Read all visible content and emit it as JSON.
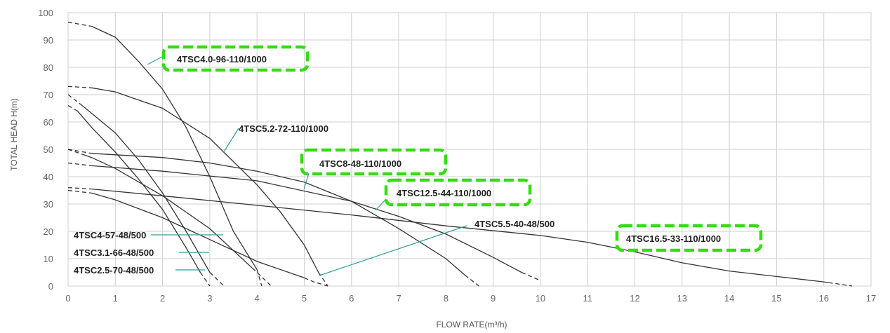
{
  "chart_data": {
    "type": "line",
    "title": "",
    "xlabel": "FLOW RATE(m³/h)",
    "ylabel": "TOTAL HEAD H(m)",
    "xlim": [
      0,
      17
    ],
    "ylim": [
      0,
      100
    ],
    "x_ticks": [
      "0",
      "1",
      "2",
      "3",
      "4",
      "5",
      "6",
      "7",
      "8",
      "9",
      "10",
      "11",
      "12",
      "13",
      "14",
      "15",
      "16",
      "17"
    ],
    "y_ticks": [
      "0",
      "10",
      "20",
      "30",
      "40",
      "50",
      "60",
      "70",
      "80",
      "90",
      "100"
    ],
    "grid": true,
    "series": [
      {
        "name": "4TSC4.0-96-110/1000",
        "highlighted": true,
        "x": [
          0,
          0.5,
          1,
          1.5,
          2,
          2.5,
          3,
          3.5,
          4,
          4.1
        ],
        "y": [
          96.5,
          95,
          91,
          82,
          72,
          58,
          40,
          20,
          6,
          0
        ],
        "dashed_segments": [
          [
            0,
            0.5
          ],
          [
            4,
            4.1
          ]
        ]
      },
      {
        "name": "4TSC5.2-72-110/1000",
        "highlighted": false,
        "x": [
          0,
          0.5,
          1,
          2,
          3,
          4,
          4.5,
          5,
          5.3,
          5.5
        ],
        "y": [
          73,
          72.5,
          71,
          65,
          54,
          37,
          27,
          15,
          5,
          0
        ],
        "dashed_segments": [
          [
            0,
            0.5
          ],
          [
            5.3,
            5.5
          ]
        ]
      },
      {
        "name": "4TSC8-48-110/1000",
        "highlighted": true,
        "x": [
          0,
          0.5,
          1,
          2,
          3,
          4,
          5,
          6,
          7,
          8,
          8.4,
          8.7
        ],
        "y": [
          50,
          48.5,
          48,
          47,
          45,
          42,
          38,
          31,
          21,
          10,
          4,
          0
        ],
        "dashed_segments": [
          [
            0,
            0.5
          ],
          [
            8.4,
            8.7
          ]
        ]
      },
      {
        "name": "4TSC12.5-44-110/1000",
        "highlighted": true,
        "x": [
          0,
          0.5,
          2,
          4,
          6,
          7,
          8,
          9,
          9.6,
          10
        ],
        "y": [
          45,
          44,
          42,
          38.5,
          31,
          25.5,
          19,
          10.5,
          5,
          2
        ],
        "dashed_segments": [
          [
            0,
            0.5
          ],
          [
            9.6,
            10
          ]
        ]
      },
      {
        "name": "4TSC16.5-33-110/1000",
        "highlighted": true,
        "x": [
          0,
          0.5,
          2,
          4,
          6,
          8,
          10,
          11,
          12,
          13,
          14,
          15,
          16,
          16.6
        ],
        "y": [
          36,
          35.5,
          33,
          29.5,
          26,
          22,
          18.5,
          16,
          12.5,
          8.5,
          5.5,
          3.5,
          1.5,
          0
        ],
        "dashed_segments": [
          [
            0,
            0.5
          ],
          [
            16.1,
            16.6
          ]
        ]
      },
      {
        "name": "4TSC5.5-40-48/500",
        "highlighted": false,
        "x": [
          0,
          0.5,
          1,
          2,
          3,
          4,
          5,
          5.2,
          5.5
        ],
        "y": [
          35,
          34,
          31.5,
          25,
          17,
          9,
          3,
          1.5,
          0
        ],
        "dashed_segments": [
          [
            0,
            0.5
          ],
          [
            5,
            5.5
          ]
        ]
      },
      {
        "name": "4TSC4-57-48/500",
        "highlighted": false,
        "x": [
          0,
          0.5,
          1,
          2,
          3,
          4,
          4.3
        ],
        "y": [
          50,
          47,
          43,
          33,
          21,
          5,
          0
        ],
        "dashed_segments": [
          [
            0,
            0.3
          ],
          [
            3.9,
            4.3
          ]
        ]
      },
      {
        "name": "4TSC3.1-66-48/500",
        "highlighted": false,
        "x": [
          0,
          0.3,
          1,
          1.5,
          2,
          2.5,
          3,
          3.3
        ],
        "y": [
          70,
          66,
          56,
          46,
          34,
          20,
          5,
          0
        ],
        "dashed_segments": [
          [
            0,
            0.3
          ],
          [
            3.0,
            3.3
          ]
        ]
      },
      {
        "name": "4TSC2.5-70-48/500",
        "highlighted": false,
        "x": [
          0,
          0.2,
          0.5,
          1,
          1.5,
          2,
          2.5,
          2.8,
          3.0
        ],
        "y": [
          66,
          64,
          58,
          49,
          39,
          28,
          14,
          5,
          0
        ],
        "dashed_segments": [
          [
            0,
            0.2
          ],
          [
            2.8,
            3.0
          ]
        ]
      }
    ],
    "annotations": [
      {
        "text": "4TSC4.0-96-110/1000",
        "highlighted": true
      },
      {
        "text": "4TSC5.2-72-110/1000",
        "highlighted": false
      },
      {
        "text": "4TSC8-48-110/1000",
        "highlighted": true
      },
      {
        "text": "4TSC12.5-44-110/1000",
        "highlighted": true
      },
      {
        "text": "4TSC5.5-40-48/500",
        "highlighted": false
      },
      {
        "text": "4TSC16.5-33-110/1000",
        "highlighted": true
      },
      {
        "text": "4TSC4-57-48/500",
        "highlighted": false
      },
      {
        "text": "4TSC3.1-66-48/500",
        "highlighted": false
      },
      {
        "text": "4TSC2.5-70-48/500",
        "highlighted": false
      }
    ],
    "colors": {
      "curve": "#333333",
      "grid": "#cfcfcf",
      "highlight": "#33dd11",
      "leader": "#2e9e9a"
    }
  }
}
